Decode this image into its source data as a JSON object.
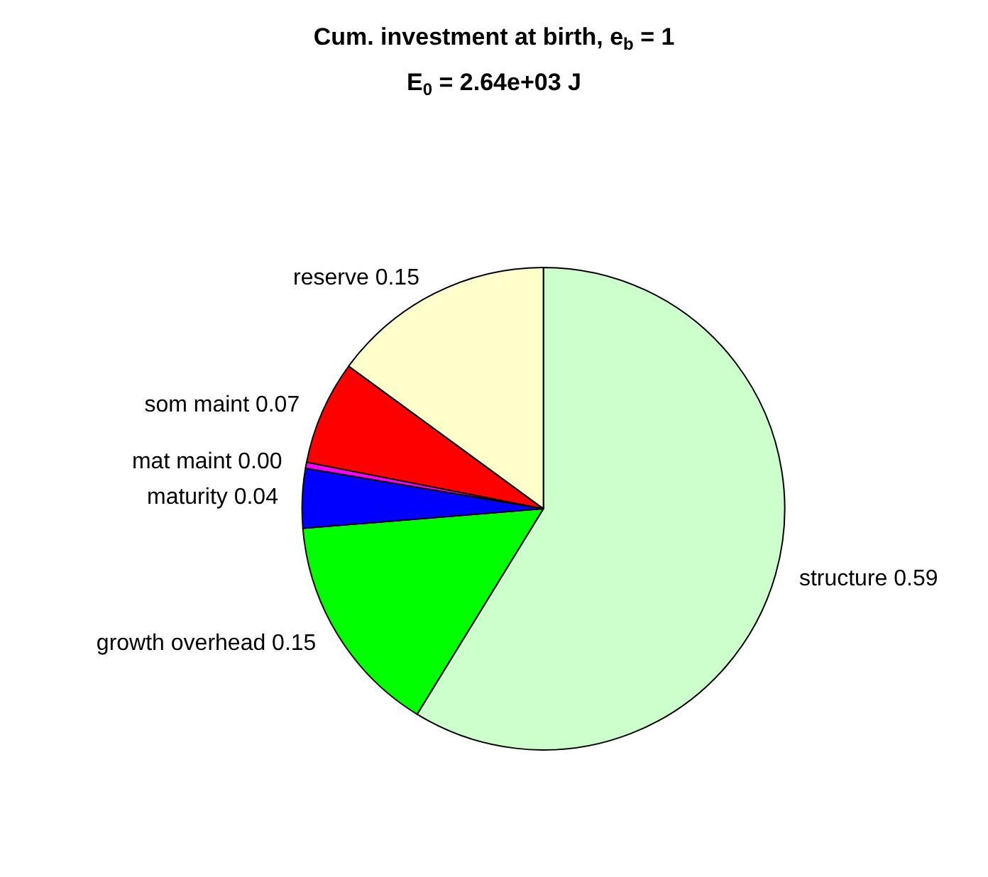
{
  "chart_data": {
    "type": "pie",
    "title": "Cum. investment at birth, e$_{b}$ = 1",
    "subtitle": "E$_{0}$ = 2.64e+03 J",
    "categories": [
      "structure",
      "growth overhead",
      "maturity",
      "mat maint",
      "som maint",
      "reserve"
    ],
    "values": [
      0.59,
      0.15,
      0.04,
      0.004,
      0.07,
      0.15
    ],
    "value_labels": [
      "0.59",
      "0.15",
      "0.04",
      "0.00",
      "0.07",
      "0.15"
    ],
    "colors": [
      "#ccffcc",
      "#00ff00",
      "#0000ff",
      "#ff00ff",
      "#ff0000",
      "#ffffcc"
    ],
    "legend": false
  }
}
